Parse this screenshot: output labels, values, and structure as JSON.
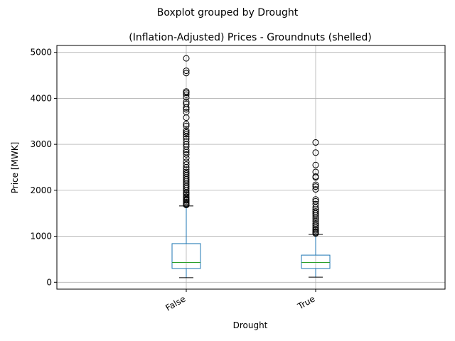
{
  "chart_data": {
    "type": "boxplot",
    "suptitle": "Boxplot grouped by Drought",
    "title": "(Inflation-Adjusted) Prices - Groundnuts (shelled)",
    "xlabel": "Drought",
    "ylabel": "Price [MWK]",
    "ylim": [
      -150,
      5150
    ],
    "yticks": [
      0,
      1000,
      2000,
      3000,
      4000,
      5000
    ],
    "grid": true,
    "categories": [
      "False",
      "True"
    ],
    "boxes": [
      {
        "category": "False",
        "whisker_low": 100,
        "q1": 300,
        "median": 430,
        "q3": 840,
        "whisker_high": 1660,
        "outliers": [
          1680,
          1700,
          1720,
          1750,
          1780,
          1800,
          1830,
          1860,
          1900,
          1930,
          1960,
          2000,
          2040,
          2080,
          2120,
          2160,
          2200,
          2240,
          2280,
          2320,
          2360,
          2400,
          2450,
          2500,
          2560,
          2620,
          2700,
          2780,
          2830,
          2880,
          2950,
          3000,
          3060,
          3120,
          3170,
          3220,
          3260,
          3300,
          3400,
          3440,
          3580,
          3700,
          3760,
          3800,
          3880,
          3920,
          4020,
          4080,
          4120,
          4150,
          4550,
          4600,
          4870
        ]
      },
      {
        "category": "True",
        "whisker_low": 110,
        "q1": 300,
        "median": 430,
        "q3": 590,
        "whisker_high": 1040,
        "outliers": [
          1060,
          1080,
          1100,
          1130,
          1160,
          1200,
          1240,
          1280,
          1330,
          1380,
          1420,
          1460,
          1500,
          1540,
          1580,
          1630,
          1700,
          1760,
          1800,
          2020,
          2080,
          2120,
          2280,
          2300,
          2400,
          2550,
          2820,
          3040
        ]
      }
    ],
    "colors": {
      "box": "#1f77b4",
      "median": "#2ca02c",
      "whisker_cap": "#000000",
      "grid": "#b0b0b0",
      "outlier_edge": "#000000"
    }
  }
}
